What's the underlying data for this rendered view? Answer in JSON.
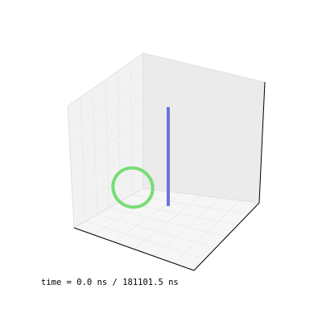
{
  "chart_data": {
    "type": "line",
    "projection": "3d",
    "title": "",
    "xlabel": "",
    "ylabel": "",
    "zlabel": "",
    "grid": true,
    "ticks": "hidden",
    "colors": {
      "pane_back_left": "#f2f2f2",
      "pane_back_right": "#ebebeb",
      "pane_floor": "#f6f6f6",
      "pane_edges": "#dcdcdc",
      "axis_line": "#000000",
      "loop": "#77dd77",
      "bar": "#6a74dd"
    },
    "series": [
      {
        "shape": "ring",
        "color": "#77dd77"
      },
      {
        "shape": "vertical-segment",
        "color": "#6a74dd"
      }
    ]
  },
  "time": {
    "prefix": "time = ",
    "current": "0.0",
    "unit": "ns",
    "separator": " / ",
    "total": "181101.5"
  }
}
